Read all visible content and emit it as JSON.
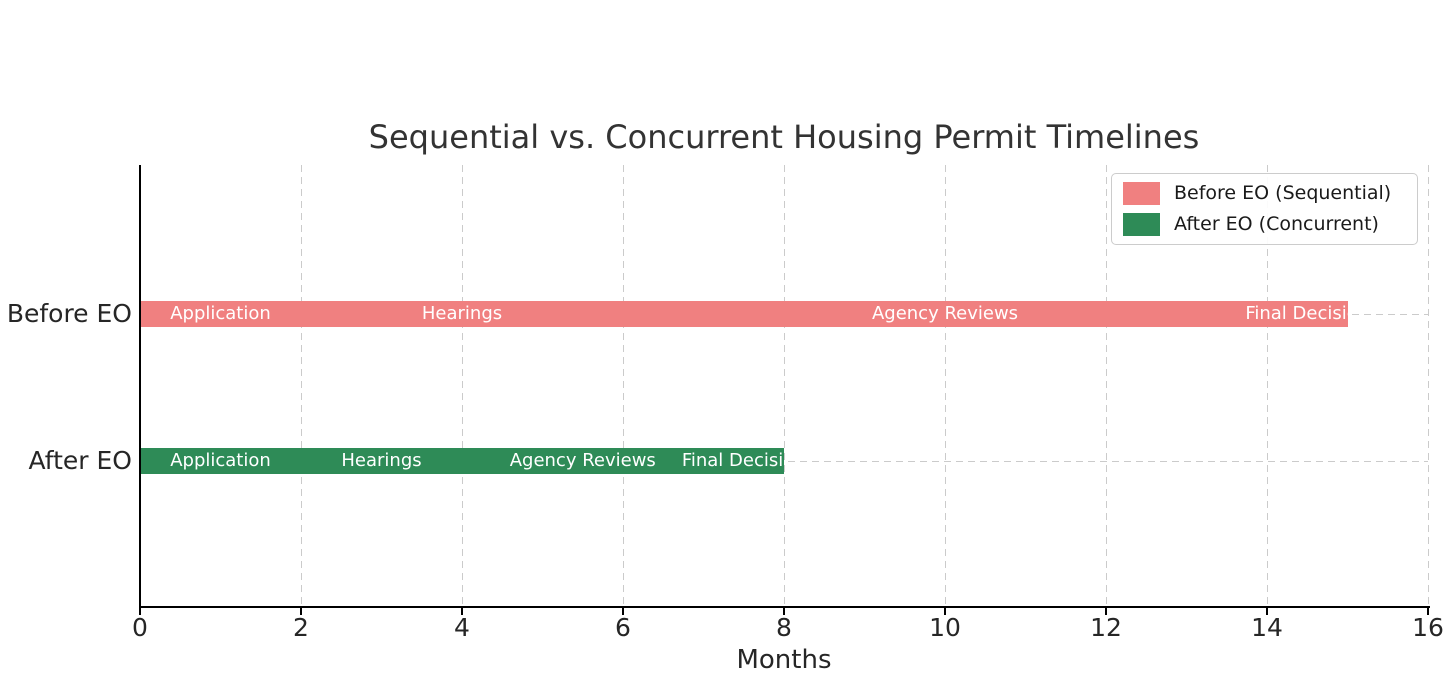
{
  "page": {
    "background": "#ffffff"
  },
  "chart_data": {
    "type": "bar",
    "subtype": "gantt-timeline",
    "orientation": "horizontal",
    "title": "Sequential vs. Concurrent Housing Permit Timelines",
    "xlabel": "Months",
    "xlim": [
      0,
      16
    ],
    "xticks": [
      0,
      2,
      4,
      6,
      8,
      10,
      12,
      14,
      16
    ],
    "grid": true,
    "categories": [
      "Before EO",
      "After EO"
    ],
    "legend": {
      "position": "upper right",
      "items": [
        {
          "label": "Before EO (Sequential)",
          "color": "#F08080"
        },
        {
          "label": "After EO (Concurrent)",
          "color": "#2E8B57"
        }
      ]
    },
    "series": [
      {
        "name": "Before EO (Sequential)",
        "category": "Before EO",
        "color": "#F08080",
        "total_months": 15,
        "segments": [
          {
            "label": "Application",
            "start": 0,
            "end": 2
          },
          {
            "label": "Hearings",
            "start": 2,
            "end": 6
          },
          {
            "label": "Agency Reviews",
            "start": 6,
            "end": 14
          },
          {
            "label": "Final Decision",
            "start": 14,
            "end": 15
          }
        ]
      },
      {
        "name": "After EO (Concurrent)",
        "category": "After EO",
        "color": "#2E8B57",
        "total_months": 8,
        "segments": [
          {
            "label": "Application",
            "start": 0,
            "end": 2
          },
          {
            "label": "Hearings",
            "start": 2,
            "end": 4
          },
          {
            "label": "Agency Reviews",
            "start": 4,
            "end": 7
          },
          {
            "label": "Final Decision",
            "start": 7,
            "end": 8
          }
        ]
      }
    ],
    "colors": {
      "bar_label_text": "#ffffff",
      "grid": "#cbcbcb",
      "axis": "#000000",
      "title_text": "#333333",
      "tick_text": "#262626"
    }
  }
}
